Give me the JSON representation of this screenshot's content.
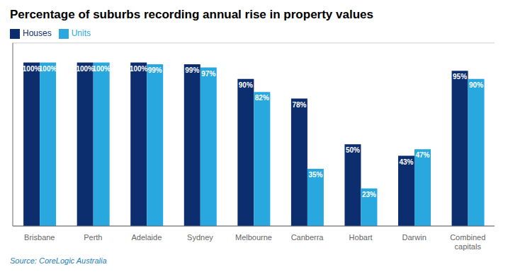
{
  "chart_data": {
    "type": "bar",
    "title": "Percentage of suburbs recording annual rise in property values",
    "categories": [
      "Brisbane",
      "Perth",
      "Adelaide",
      "Sydney",
      "Melbourne",
      "Canberra",
      "Hobart",
      "Darwin",
      "Combined\ncapitals"
    ],
    "series": [
      {
        "name": "Houses",
        "color": "#0d2e6e",
        "values": [
          100,
          100,
          100,
          99,
          90,
          78,
          50,
          43,
          95
        ],
        "value_labels": [
          "100%",
          "100%",
          "100%",
          "99%",
          "90%",
          "78%",
          "50%",
          "43%",
          "95%"
        ]
      },
      {
        "name": "Units",
        "color": "#29a8e0",
        "values": [
          100,
          100,
          99,
          97,
          82,
          35,
          23,
          47,
          90
        ],
        "value_labels": [
          "100%",
          "100%",
          "99%",
          "97%",
          "82%",
          "35%",
          "23%",
          "47%",
          "90%"
        ]
      }
    ],
    "ylim": [
      0,
      112
    ],
    "yticks": [
      0,
      25,
      50,
      75,
      100
    ],
    "grid": true,
    "legend": "upper left",
    "data_labels": true,
    "tick_labels": "x",
    "annotations": [
      {
        "text": "Source: CoreLogic Australia",
        "color": "#2980b9"
      }
    ]
  }
}
